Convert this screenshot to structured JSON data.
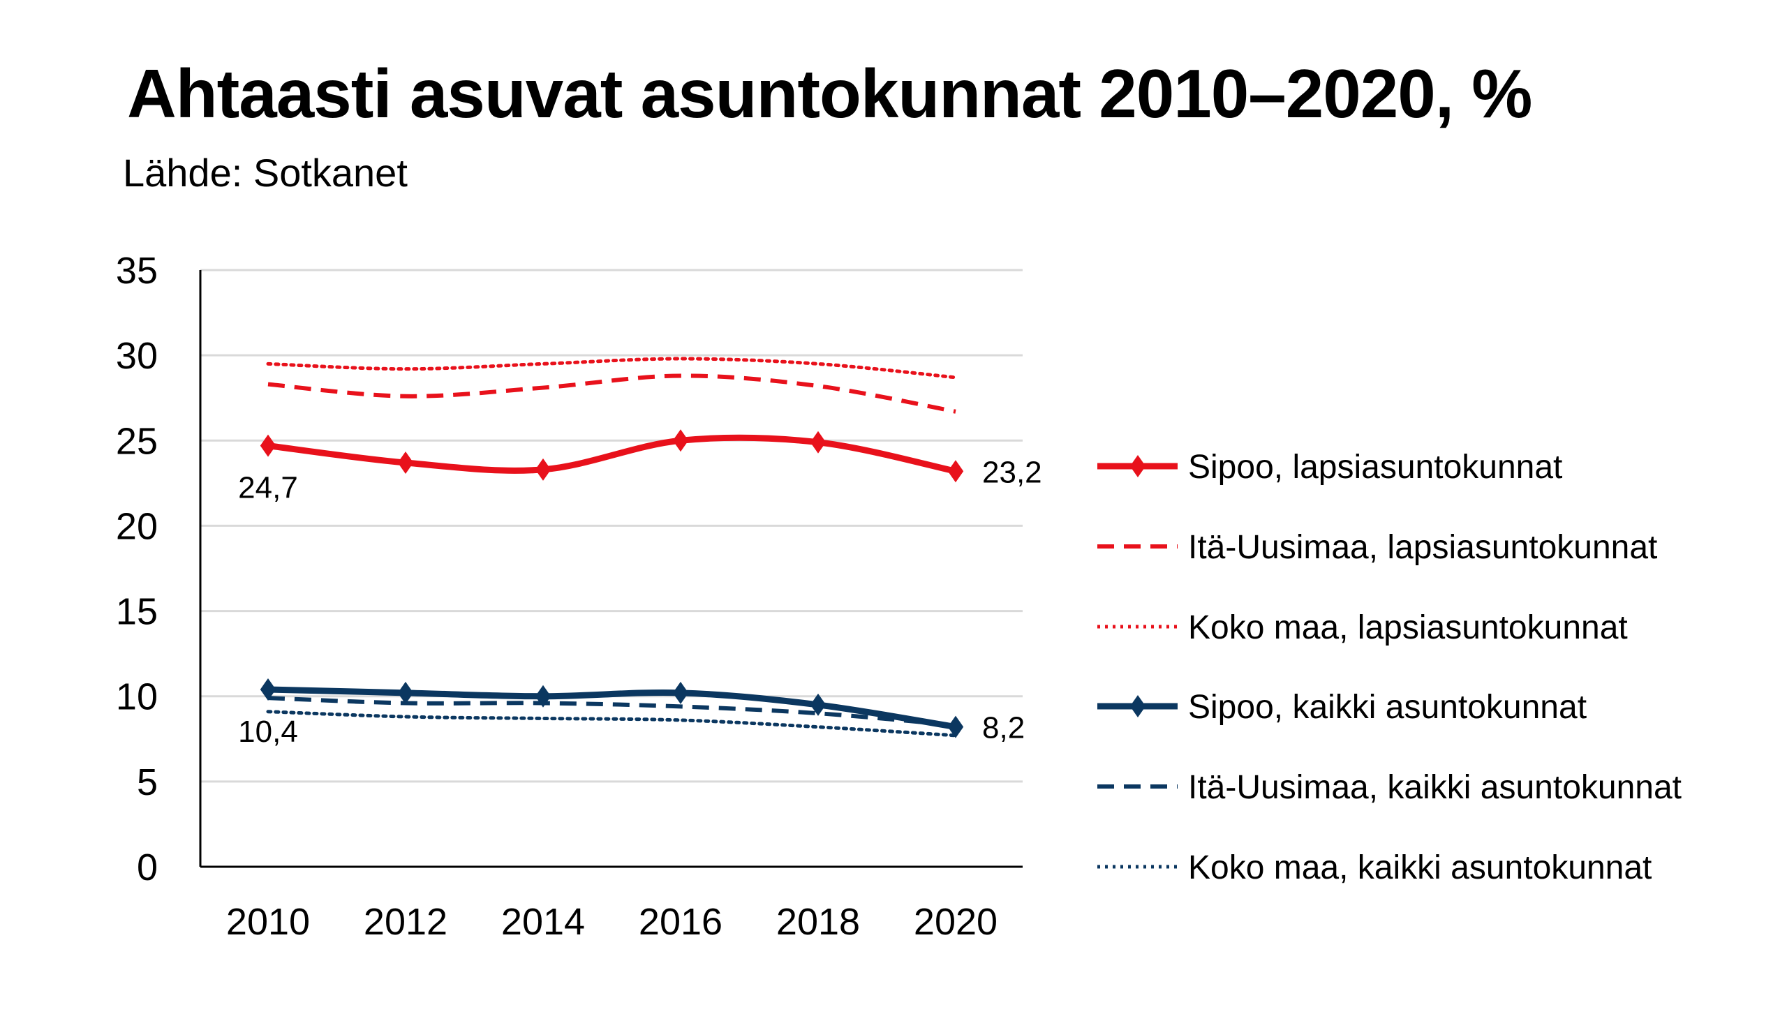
{
  "chart_data": {
    "type": "line",
    "title": "Ahtaasti asuvat asuntokunnat 2010–2020, %",
    "subtitle": "Lähde: Sotkanet",
    "xlabel": "",
    "ylabel": "",
    "categories": [
      "2010",
      "2012",
      "2014",
      "2016",
      "2018",
      "2020"
    ],
    "ylim": [
      0,
      35
    ],
    "yticks": [
      "0",
      "5",
      "10",
      "15",
      "20",
      "25",
      "30",
      "35"
    ],
    "grid": true,
    "legend_position": "right",
    "series": [
      {
        "name": "Sipoo, lapsiasuntokunnat",
        "color": "#e8111b",
        "style": "solid",
        "marker": "diamond",
        "values": [
          24.7,
          23.7,
          23.3,
          25.0,
          24.9,
          23.2
        ]
      },
      {
        "name": "Itä-Uusimaa, lapsiasuntokunnat",
        "color": "#e8111b",
        "style": "dashed",
        "marker": "none",
        "values": [
          28.3,
          27.6,
          28.1,
          28.8,
          28.2,
          26.7
        ]
      },
      {
        "name": "Koko maa, lapsiasuntokunnat",
        "color": "#e8111b",
        "style": "dotted",
        "marker": "none",
        "values": [
          29.5,
          29.2,
          29.5,
          29.8,
          29.5,
          28.7
        ]
      },
      {
        "name": "Sipoo, kaikki asuntokunnat",
        "color": "#0b3760",
        "style": "solid",
        "marker": "diamond",
        "values": [
          10.4,
          10.2,
          10.0,
          10.2,
          9.5,
          8.2
        ]
      },
      {
        "name": "Itä-Uusimaa, kaikki asuntokunnat",
        "color": "#0b3760",
        "style": "dashed",
        "marker": "none",
        "values": [
          9.9,
          9.6,
          9.6,
          9.4,
          9.0,
          8.3
        ]
      },
      {
        "name": "Koko maa, kaikki asuntokunnat",
        "color": "#0b3760",
        "style": "dotted",
        "marker": "none",
        "values": [
          9.1,
          8.8,
          8.7,
          8.6,
          8.2,
          7.7
        ]
      }
    ],
    "data_labels": [
      {
        "series": 0,
        "index": 0,
        "text": "24,7"
      },
      {
        "series": 0,
        "index": 5,
        "text": "23,2"
      },
      {
        "series": 3,
        "index": 0,
        "text": "10,4"
      },
      {
        "series": 3,
        "index": 5,
        "text": "8,2"
      }
    ]
  }
}
